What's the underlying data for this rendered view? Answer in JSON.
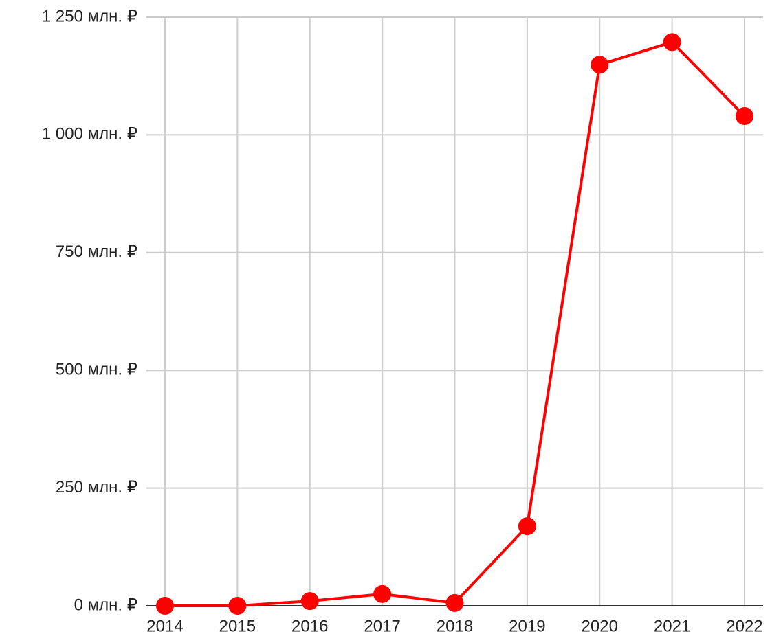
{
  "chart_data": {
    "type": "line",
    "categories": [
      "2014",
      "2015",
      "2016",
      "2017",
      "2018",
      "2019",
      "2020",
      "2021",
      "2022"
    ],
    "series": [
      {
        "color": "#ff0000",
        "values": [
          0,
          0,
          10,
          25,
          6,
          169,
          1149,
          1197,
          1040
        ]
      }
    ],
    "ylim": [
      0,
      1250
    ],
    "yticks": [
      {
        "value": 0,
        "label": "0 млн. ₽"
      },
      {
        "value": 250,
        "label": "250 млн. ₽"
      },
      {
        "value": 500,
        "label": "500 млн. ₽"
      },
      {
        "value": 750,
        "label": "750 млн. ₽"
      },
      {
        "value": 1000,
        "label": "1 000 млн. ₽"
      },
      {
        "value": 1250,
        "label": "1 250 млн. ₽"
      }
    ],
    "grid": true
  }
}
